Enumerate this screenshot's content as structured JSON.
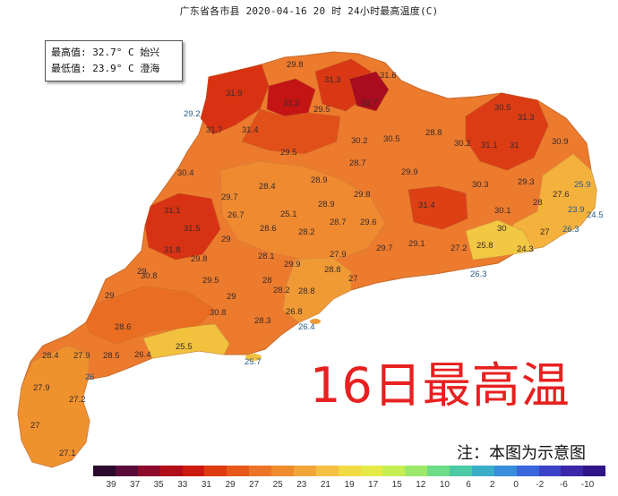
{
  "title": "广东省各市县  2020-04-16 20 时  24小时最高温度(C)",
  "extremes": {
    "max_line": "最高值: 32.7° C 始兴",
    "min_line": "最低值: 23.9° C 澄海"
  },
  "headline": "16日最高温",
  "note": "注：本图为示意图",
  "legend": {
    "colors": [
      "#2b0a2e",
      "#5a0b3a",
      "#8c0a2c",
      "#b00d18",
      "#cc1a10",
      "#de3a10",
      "#e6581a",
      "#ec7426",
      "#ef8c2e",
      "#f2a63a",
      "#f4c043",
      "#f2da44",
      "#e6ea48",
      "#c6ee52",
      "#9ce86a",
      "#6edc86",
      "#4ccaa6",
      "#3aaec8",
      "#3a8cdc",
      "#3a66dc",
      "#3c42c8",
      "#3a28a8",
      "#2e1486"
    ],
    "ticks": [
      "39",
      "37",
      "35",
      "33",
      "31",
      "29",
      "27",
      "25",
      "23",
      "21",
      "19",
      "17",
      "15",
      "12",
      "10",
      "6",
      "2",
      "0",
      "-2",
      "-6",
      "-10"
    ]
  },
  "labels": [
    {
      "v": "29.8",
      "c": false
    },
    {
      "v": "31.3",
      "c": false
    },
    {
      "v": "31.6",
      "c": false
    },
    {
      "v": "31.9",
      "c": false
    },
    {
      "v": "31.2",
      "c": false
    },
    {
      "v": "29.5",
      "c": false
    },
    {
      "v": "32.7",
      "c": false
    },
    {
      "v": "29.2",
      "c": true
    },
    {
      "v": "31.7",
      "c": false
    },
    {
      "v": "31.4",
      "c": false
    },
    {
      "v": "29.5",
      "c": false
    },
    {
      "v": "30.2",
      "c": false
    },
    {
      "v": "30.5",
      "c": false
    },
    {
      "v": "28.8",
      "c": false
    },
    {
      "v": "30.2",
      "c": false
    },
    {
      "v": "31.1",
      "c": false
    },
    {
      "v": "31",
      "c": false
    },
    {
      "v": "30.9",
      "c": false
    },
    {
      "v": "30.5",
      "c": false
    },
    {
      "v": "31.3",
      "c": false
    },
    {
      "v": "30.4",
      "c": false
    },
    {
      "v": "28.7",
      "c": false
    },
    {
      "v": "29.9",
      "c": false
    },
    {
      "v": "29.3",
      "c": false
    },
    {
      "v": "27.6",
      "c": false
    },
    {
      "v": "25.9",
      "c": true
    },
    {
      "v": "29.7",
      "c": false
    },
    {
      "v": "28.4",
      "c": false
    },
    {
      "v": "28.9",
      "c": false
    },
    {
      "v": "29.8",
      "c": false
    },
    {
      "v": "30.3",
      "c": false
    },
    {
      "v": "28",
      "c": false
    },
    {
      "v": "23.9",
      "c": true
    },
    {
      "v": "24.5",
      "c": true
    },
    {
      "v": "31.1",
      "c": false
    },
    {
      "v": "26.7",
      "c": false
    },
    {
      "v": "25.1",
      "c": false
    },
    {
      "v": "28.9",
      "c": false
    },
    {
      "v": "31.4",
      "c": false
    },
    {
      "v": "30.1",
      "c": false
    },
    {
      "v": "31.5",
      "c": false
    },
    {
      "v": "29",
      "c": false
    },
    {
      "v": "28.6",
      "c": false
    },
    {
      "v": "28.2",
      "c": false
    },
    {
      "v": "28.7",
      "c": false
    },
    {
      "v": "29.6",
      "c": false
    },
    {
      "v": "30",
      "c": false
    },
    {
      "v": "27",
      "c": false
    },
    {
      "v": "26.3",
      "c": true
    },
    {
      "v": "31.8",
      "c": false
    },
    {
      "v": "29.8",
      "c": false
    },
    {
      "v": "28.1",
      "c": false
    },
    {
      "v": "27.9",
      "c": false
    },
    {
      "v": "29.7",
      "c": false
    },
    {
      "v": "29.1",
      "c": false
    },
    {
      "v": "27.2",
      "c": false
    },
    {
      "v": "25.8",
      "c": false
    },
    {
      "v": "24.3",
      "c": false
    },
    {
      "v": "30.8",
      "c": false
    },
    {
      "v": "29.5",
      "c": false
    },
    {
      "v": "29.9",
      "c": false
    },
    {
      "v": "28.8",
      "c": false
    },
    {
      "v": "27",
      "c": false
    },
    {
      "v": "26.3",
      "c": true
    },
    {
      "v": "29",
      "c": false
    },
    {
      "v": "29",
      "c": false
    },
    {
      "v": "28",
      "c": false
    },
    {
      "v": "28.2",
      "c": false
    },
    {
      "v": "28.8",
      "c": false
    },
    {
      "v": "29",
      "c": false
    },
    {
      "v": "30.8",
      "c": false
    },
    {
      "v": "26.8",
      "c": false
    },
    {
      "v": "28.6",
      "c": false
    },
    {
      "v": "28.3",
      "c": false
    },
    {
      "v": "26.4",
      "c": true
    },
    {
      "v": "25.5",
      "c": false
    },
    {
      "v": "28.4",
      "c": false
    },
    {
      "v": "27.9",
      "c": false
    },
    {
      "v": "28.5",
      "c": false
    },
    {
      "v": "26.4",
      "c": false
    },
    {
      "v": "25.7",
      "c": true
    },
    {
      "v": "26",
      "c": true
    },
    {
      "v": "27.9",
      "c": false
    },
    {
      "v": "27.2",
      "c": false
    },
    {
      "v": "27",
      "c": false
    },
    {
      "v": "27.1",
      "c": false
    }
  ]
}
